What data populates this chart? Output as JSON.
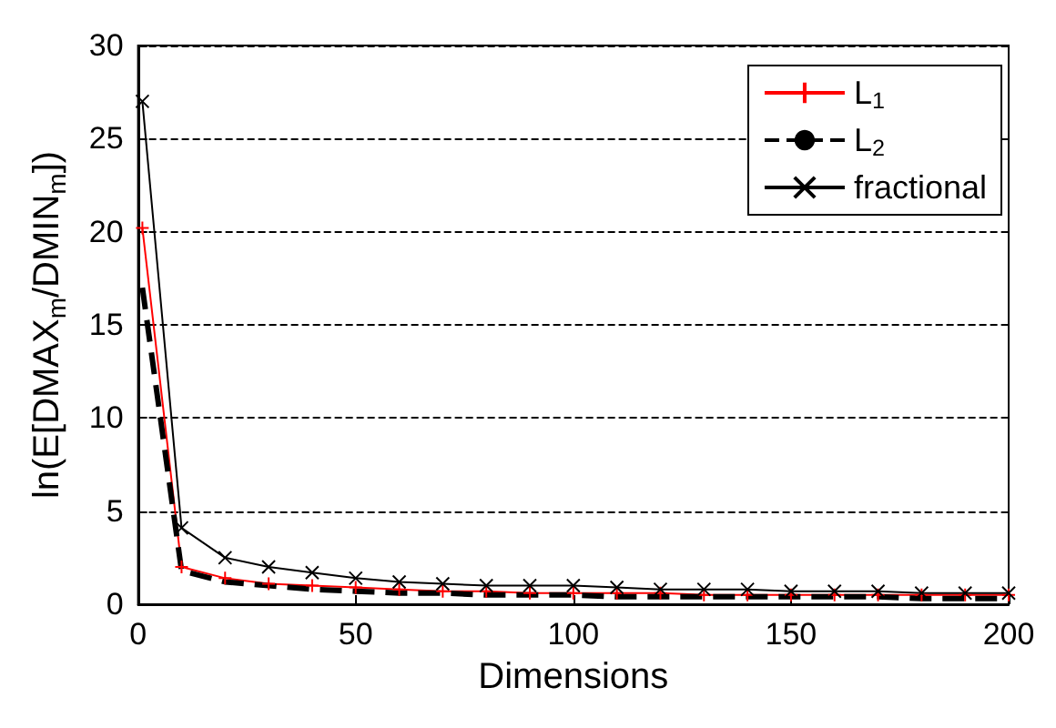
{
  "chart_data": {
    "type": "line",
    "xlabel": "Dimensions",
    "ylabel": "ln(E[DMAX$_{m}$/DMIN$_{m}$])",
    "x": [
      1,
      10,
      20,
      30,
      40,
      50,
      60,
      70,
      80,
      90,
      100,
      110,
      120,
      130,
      140,
      150,
      160,
      170,
      180,
      190,
      200
    ],
    "series": [
      {
        "name": "L$_{1}$",
        "color": "#ff0000",
        "marker": "cross",
        "line_style": "solid",
        "values": [
          20.2,
          2.0,
          1.4,
          1.1,
          1.0,
          0.9,
          0.8,
          0.7,
          0.7,
          0.6,
          0.6,
          0.6,
          0.6,
          0.5,
          0.5,
          0.5,
          0.5,
          0.5,
          0.5,
          0.5,
          0.5
        ]
      },
      {
        "name": "L$_{2}$",
        "color": "#000000",
        "marker": "none",
        "line_style": "dashed",
        "values": [
          17,
          1.8,
          1.2,
          1.0,
          0.8,
          0.7,
          0.6,
          0.6,
          0.5,
          0.5,
          0.5,
          0.4,
          0.4,
          0.4,
          0.4,
          0.4,
          0.4,
          0.4,
          0.3,
          0.3,
          0.3
        ]
      },
      {
        "name": "fractional",
        "color": "#000000",
        "marker": "x",
        "line_style": "solid",
        "values": [
          27,
          4.1,
          2.5,
          2.0,
          1.7,
          1.4,
          1.2,
          1.1,
          1.0,
          1.0,
          1.0,
          0.9,
          0.8,
          0.8,
          0.8,
          0.7,
          0.7,
          0.7,
          0.6,
          0.6,
          0.6
        ]
      }
    ],
    "xlim": [
      0,
      200
    ],
    "xticks": [
      0,
      50,
      100,
      150,
      200
    ],
    "ylim": [
      0,
      30
    ],
    "yticks": [
      0,
      5,
      10,
      15,
      20,
      25,
      30
    ],
    "grid": "y",
    "legend": "top right"
  }
}
